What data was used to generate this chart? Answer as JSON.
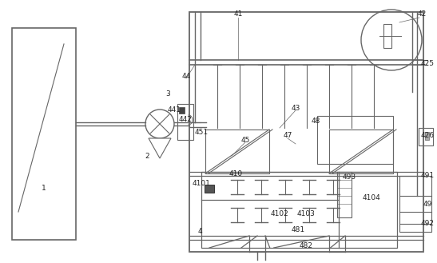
{
  "bg_color": "#ffffff",
  "lc": "#666666",
  "dc": "#333333",
  "fig_width": 5.47,
  "fig_height": 3.29,
  "dpi": 100
}
